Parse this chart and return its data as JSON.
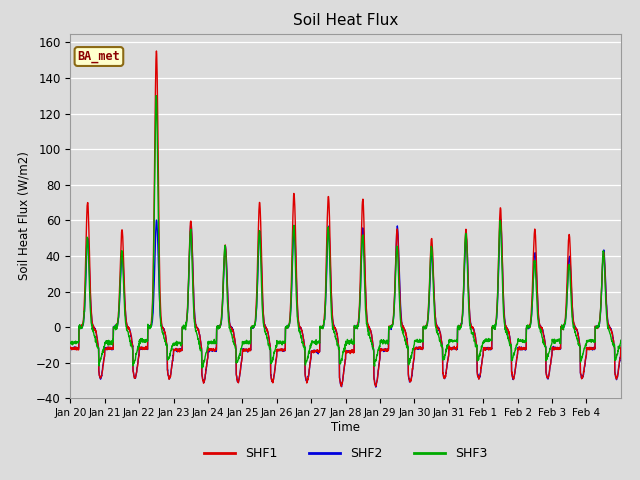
{
  "title": "Soil Heat Flux",
  "ylabel": "Soil Heat Flux (W/m2)",
  "xlabel": "Time",
  "ylim": [
    -40,
    165
  ],
  "yticks": [
    -40,
    -20,
    0,
    20,
    40,
    60,
    80,
    100,
    120,
    140,
    160
  ],
  "colors": {
    "SHF1": "#dd0000",
    "SHF2": "#0000dd",
    "SHF3": "#00aa00"
  },
  "legend_label": "BA_met",
  "bg_color": "#dcdcdc",
  "linewidth": 1.0,
  "tick_labels": [
    "Jan 20",
    "Jan 21",
    "Jan 22",
    "Jan 23",
    "Jan 24",
    "Jan 25",
    "Jan 26",
    "Jan 27",
    "Jan 28",
    "Jan 29",
    "Jan 30",
    "Jan 31",
    "Feb 1",
    "Feb 2",
    "Feb 3",
    "Feb 4"
  ],
  "shf1_day_peaks": [
    70,
    55,
    155,
    60,
    46,
    70,
    75,
    74,
    72,
    55,
    50,
    55,
    67,
    55,
    52,
    42
  ],
  "shf2_day_peaks": [
    50,
    42,
    60,
    58,
    45,
    54,
    57,
    56,
    56,
    56,
    42,
    50,
    60,
    42,
    40,
    43
  ],
  "shf3_day_peaks": [
    50,
    43,
    130,
    55,
    46,
    54,
    57,
    56,
    52,
    45,
    45,
    53,
    60,
    37,
    35,
    42
  ],
  "shf1_night_vals": [
    -28,
    -28,
    -28,
    -30,
    -30,
    -30,
    -30,
    -32,
    -32,
    -30,
    -28,
    -28,
    -28,
    -28,
    -28,
    -28
  ],
  "shf2_night_vals": [
    -28,
    -28,
    -28,
    -30,
    -30,
    -30,
    -30,
    -32,
    -32,
    -30,
    -28,
    -28,
    -28,
    -28,
    -28,
    -28
  ],
  "shf3_night_vals": [
    -20,
    -20,
    -18,
    -22,
    -20,
    -20,
    -20,
    -20,
    -20,
    -20,
    -18,
    -18,
    -18,
    -18,
    -18,
    -18
  ]
}
